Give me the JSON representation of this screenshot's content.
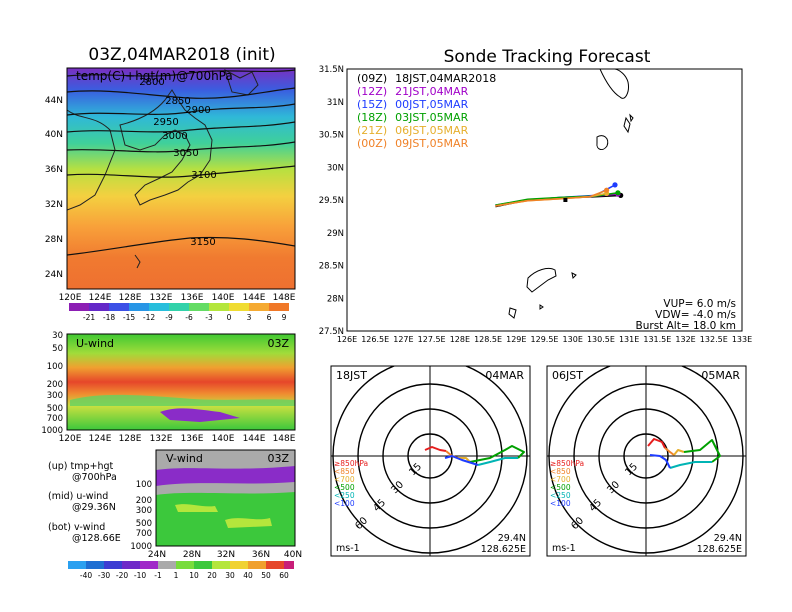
{
  "left": {
    "title": "03Z,04MAR2018 (init)",
    "map_label": "temp(C)+hgt(m)@700hPa",
    "contours": [
      "2800",
      "2850",
      "2900",
      "2950",
      "3000",
      "3050",
      "3100",
      "3150"
    ],
    "lat_ticks": [
      "44N",
      "40N",
      "36N",
      "32N",
      "28N",
      "24N"
    ],
    "lon_ticks": [
      "120E",
      "124E",
      "128E",
      "132E",
      "136E",
      "140E",
      "144E",
      "148E"
    ],
    "temp_scale": [
      "-21",
      "-18",
      "-15",
      "-12",
      "-9",
      "-6",
      "-3",
      "0",
      "3",
      "6",
      "9"
    ],
    "uwind": {
      "label": "U-wind",
      "time": "03Z",
      "p_ticks": [
        "30",
        "50",
        "100",
        "200",
        "300",
        "500",
        "700",
        "1000"
      ]
    },
    "vwind": {
      "label": "V-wind",
      "time": "03Z",
      "p_ticks": [
        "100",
        "200",
        "300",
        "500",
        "700",
        "1000"
      ],
      "lat_ticks": [
        "24N",
        "28N",
        "32N",
        "36N",
        "40N"
      ]
    },
    "notes": [
      "(up) tmp+hgt",
      "@700hPa",
      "(mid) u-wind",
      "@29.36N",
      "(bot) v-wind",
      "@128.66E"
    ],
    "wind_scale": [
      "-40",
      "-30",
      "-20",
      "-10",
      "-1",
      "1",
      "10",
      "20",
      "30",
      "40",
      "50",
      "60"
    ]
  },
  "track": {
    "title": "Sonde Tracking Forecast",
    "legend": [
      {
        "code": "(09Z)",
        "time": "18JST,04MAR2018",
        "color": "#000000"
      },
      {
        "code": "(12Z)",
        "time": "21JST,04MAR",
        "color": "#a000c8"
      },
      {
        "code": "(15Z)",
        "time": "00JST,05MAR",
        "color": "#1e3cff"
      },
      {
        "code": "(18Z)",
        "time": "03JST,05MAR",
        "color": "#00a000"
      },
      {
        "code": "(21Z)",
        "time": "06JST,05MAR",
        "color": "#e6af2d"
      },
      {
        "code": "(00Z)",
        "time": "09JST,05MAR",
        "color": "#f08228"
      }
    ],
    "info": [
      "VUP= 6.0 m/s",
      "VDW= -4.0 m/s",
      "Burst Alt= 18.0 km"
    ]
  },
  "polar": [
    {
      "time": "18JST",
      "date": "04MAR",
      "loc1": "29.4N",
      "loc2": "128.625E",
      "unit": "ms-1"
    },
    {
      "time": "06JST",
      "date": "05MAR",
      "loc1": "29.4N",
      "loc2": "128.625E",
      "unit": "ms-1"
    }
  ],
  "polar_rings": [
    "15",
    "30",
    "45",
    "60"
  ],
  "polar_legend": [
    {
      "label": "≥850hPa",
      "color": "#e61e1e"
    },
    {
      "label": "<850",
      "color": "#f08228"
    },
    {
      "label": "<700",
      "color": "#e6af2d"
    },
    {
      "label": "<500",
      "color": "#00a000"
    },
    {
      "label": "<250",
      "color": "#00b4b4"
    },
    {
      "label": "<100",
      "color": "#1e3cff"
    }
  ],
  "chart_data": [
    {
      "type": "line",
      "title": "Sonde Tracking Forecast",
      "xlim": [
        126,
        133
      ],
      "ylim": [
        27.5,
        31.5
      ],
      "x_ticks": [
        "126E",
        "126.5E",
        "127E",
        "127.5E",
        "128E",
        "128.5E",
        "129E",
        "129.5E",
        "130E",
        "130.5E",
        "131E",
        "131.5E",
        "132E",
        "132.5E",
        "133E"
      ],
      "y_ticks": [
        "27.5N",
        "28N",
        "28.5N",
        "29N",
        "29.5N",
        "30N",
        "30.5N",
        "31N",
        "31.5N"
      ],
      "series": [
        {
          "name": "(09Z) 18JST,04MAR2018",
          "color": "#000000",
          "x": [
            128.63,
            129.2,
            129.8,
            130.4,
            130.85
          ],
          "y": [
            29.4,
            29.5,
            29.53,
            29.55,
            29.57
          ]
        },
        {
          "name": "(12Z) 21JST,04MAR",
          "color": "#a000c8",
          "x": [
            128.63,
            129.2,
            129.8,
            130.4,
            130.8
          ],
          "y": [
            29.41,
            29.5,
            29.54,
            29.56,
            29.59
          ]
        },
        {
          "name": "(15Z) 00JST,05MAR",
          "color": "#1e3cff",
          "x": [
            128.63,
            129.2,
            129.8,
            130.4,
            130.75
          ],
          "y": [
            29.42,
            29.5,
            29.54,
            29.57,
            29.73
          ]
        },
        {
          "name": "(18Z) 03JST,05MAR",
          "color": "#00a000",
          "x": [
            128.63,
            129.2,
            129.8,
            130.4,
            130.8
          ],
          "y": [
            29.42,
            29.51,
            29.54,
            29.56,
            29.61
          ]
        },
        {
          "name": "(21Z) 06JST,05MAR",
          "color": "#e6af2d",
          "x": [
            128.63,
            129.2,
            129.8,
            130.3,
            130.6
          ],
          "y": [
            29.41,
            29.49,
            29.52,
            29.55,
            29.6
          ]
        },
        {
          "name": "(00Z) 09JST,05MAR",
          "color": "#f08228",
          "x": [
            128.63,
            129.2,
            129.8,
            130.3,
            130.6
          ],
          "y": [
            29.41,
            29.49,
            29.52,
            29.55,
            29.65
          ]
        }
      ]
    }
  ]
}
